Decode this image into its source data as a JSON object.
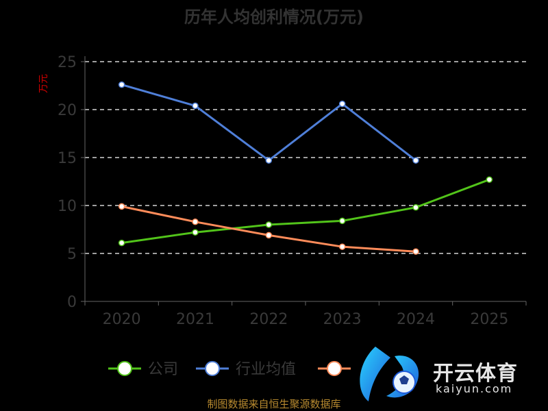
{
  "source_note": "制图数据来自恒生聚源数据库",
  "watermark": {
    "name": "开云体育",
    "domain": "kaiyun.com"
  },
  "colors": {
    "background": "#000000",
    "grid": "#ffffff",
    "axis": "#666666",
    "company": "#52c41a",
    "industry_avg": "#4f7fd8",
    "other": "#ff8c5a"
  },
  "chart_data": {
    "type": "line",
    "title": "历年人均创利情况(万元)",
    "ylabel": "万元",
    "xlabel": "",
    "categories": [
      "2020",
      "2021",
      "2022",
      "2023",
      "2024",
      "2025"
    ],
    "ylim": [
      0,
      25
    ],
    "yticks": [
      0,
      5,
      10,
      15,
      20,
      25
    ],
    "grid": true,
    "legend_position": "bottom",
    "series": [
      {
        "name": "公司",
        "color": "#52c41a",
        "values": [
          6.1,
          7.2,
          8.0,
          8.4,
          9.8,
          12.7
        ]
      },
      {
        "name": "行业均值",
        "color": "#4f7fd8",
        "values": [
          22.6,
          20.4,
          14.7,
          20.6,
          14.7,
          null
        ]
      },
      {
        "name": "",
        "color": "#ff8c5a",
        "values": [
          9.9,
          8.3,
          6.9,
          5.7,
          5.2,
          null
        ]
      }
    ]
  }
}
